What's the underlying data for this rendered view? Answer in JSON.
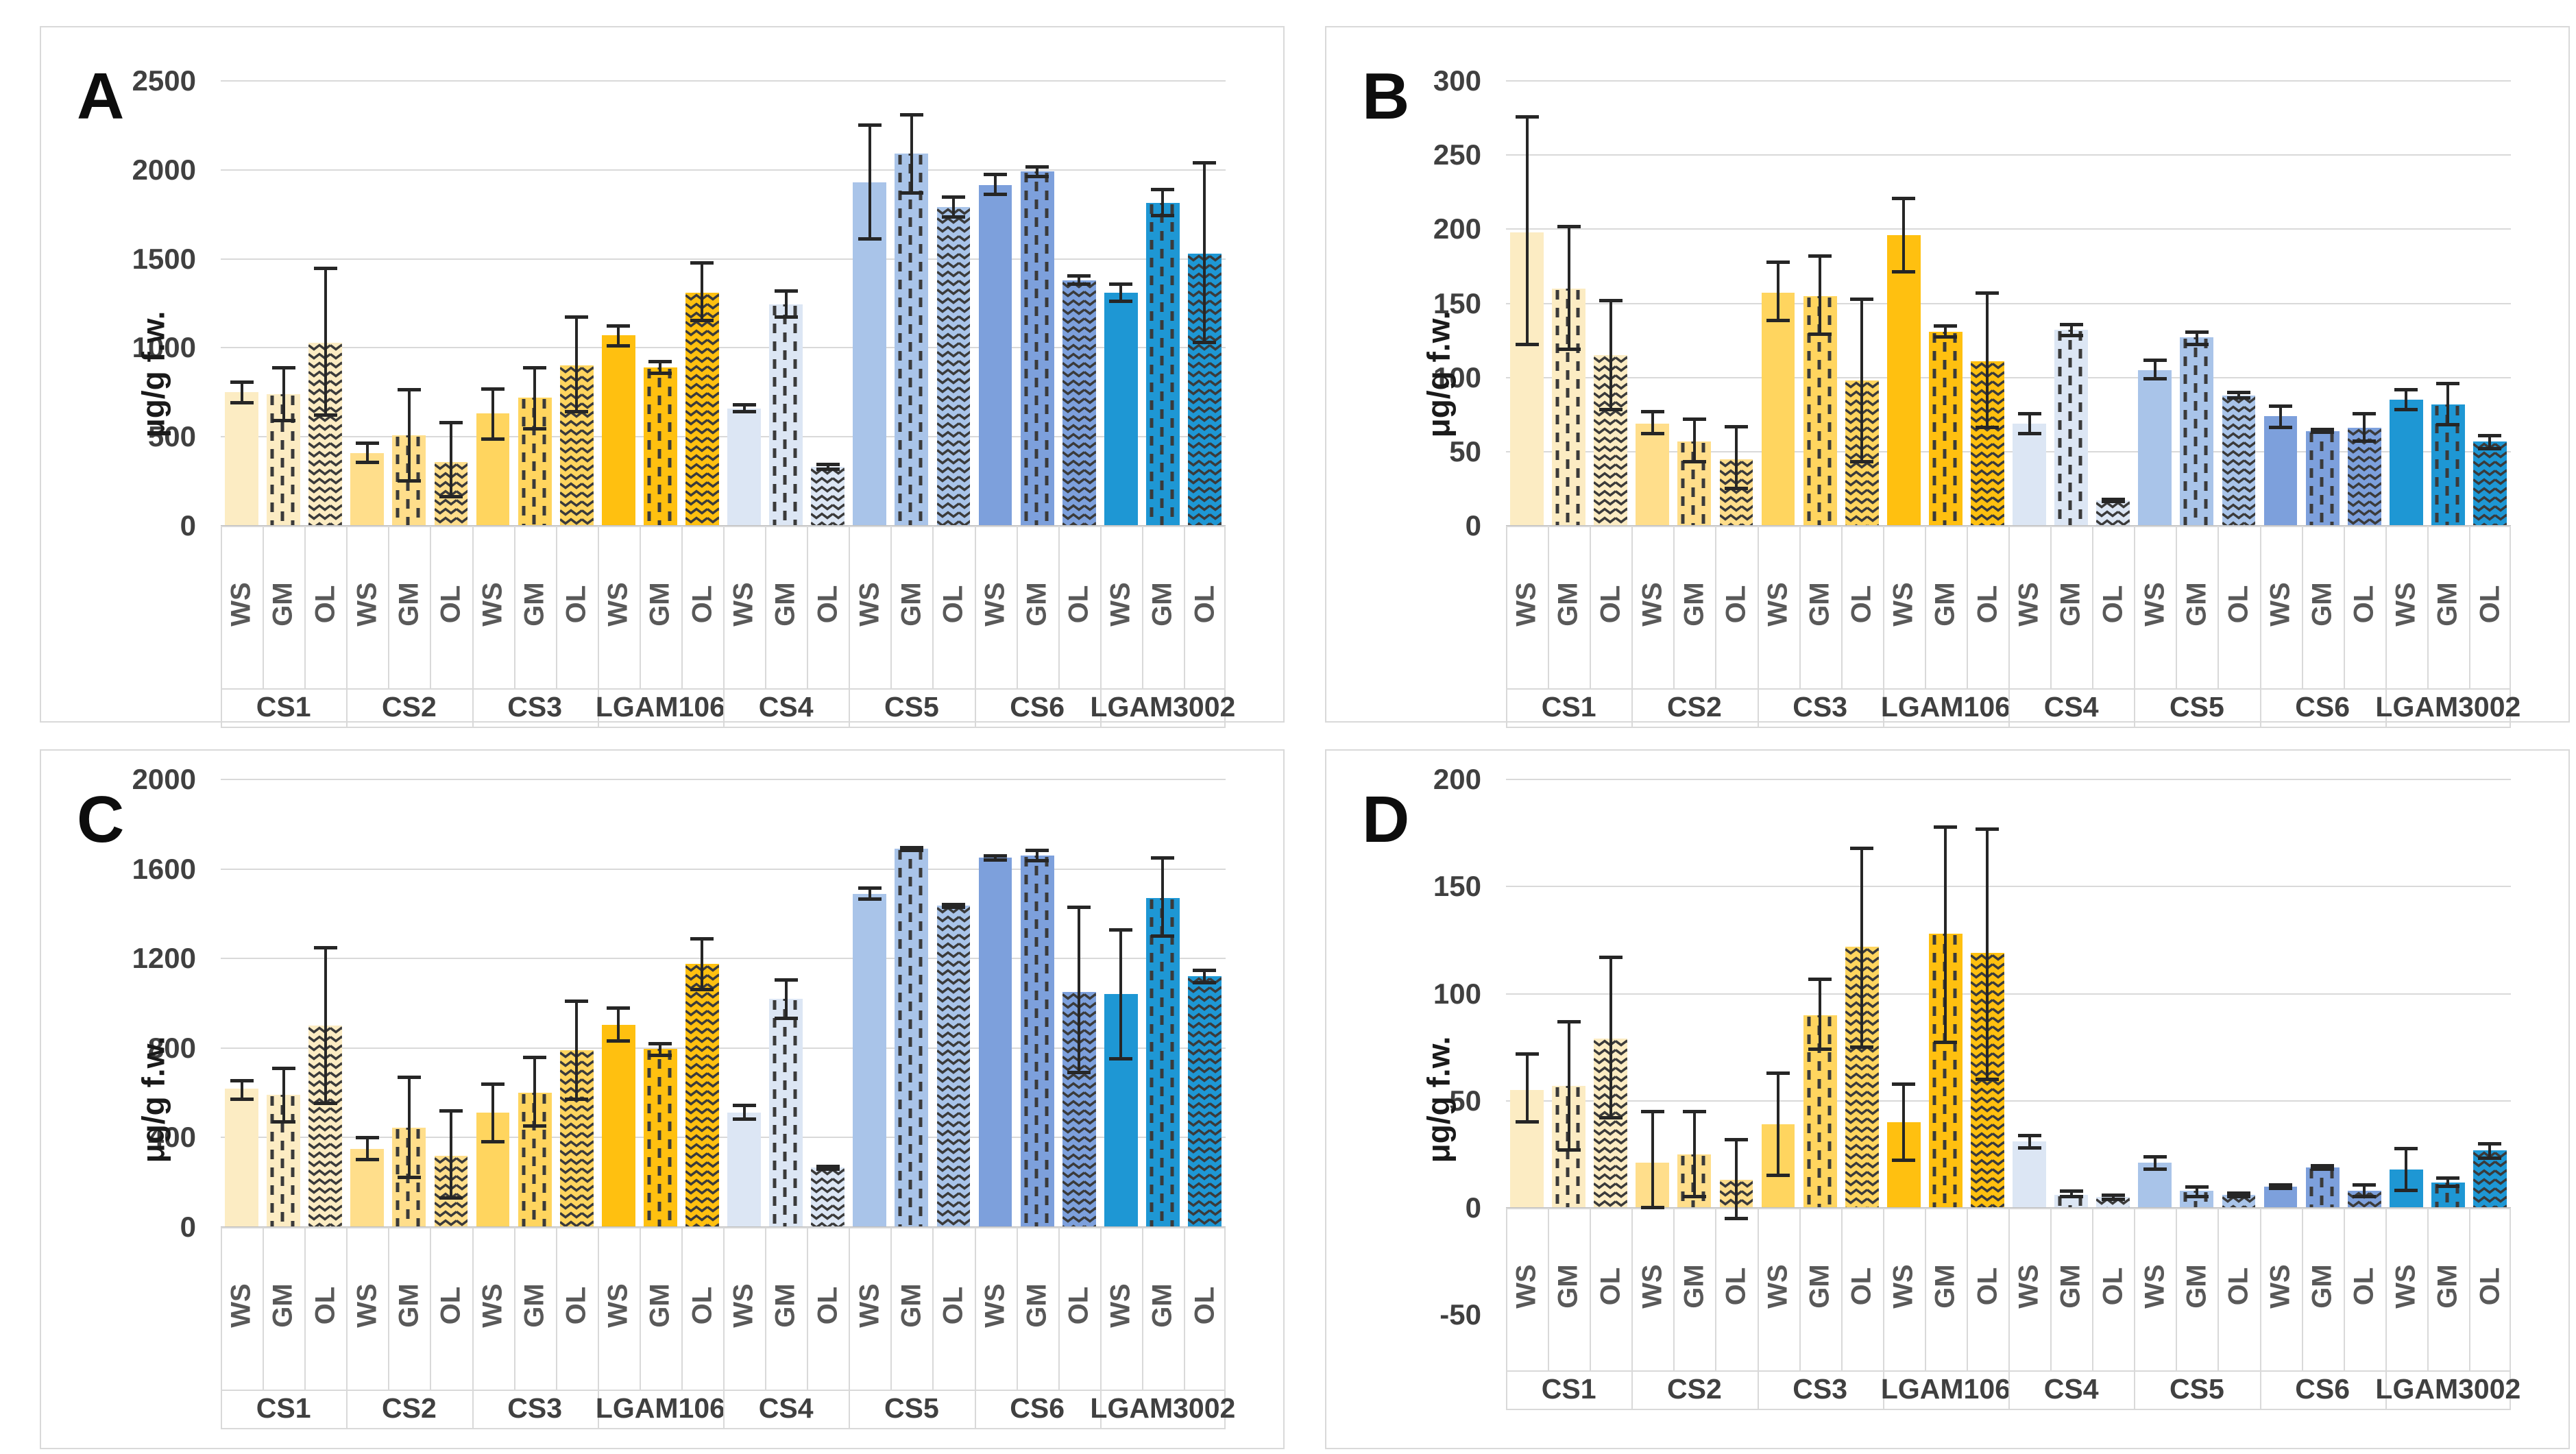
{
  "figure": {
    "panel_letters": [
      "A",
      "B",
      "C",
      "D"
    ],
    "y_axis_title": "μg/g f.w."
  },
  "strains": [
    "CS1",
    "CS2",
    "CS3",
    "LGAM106",
    "CS4",
    "CS5",
    "CS6",
    "LGAM3002"
  ],
  "conditions": [
    "WS",
    "GM",
    "OL"
  ],
  "patterns": {
    "WS": "solid",
    "GM": "dashed-vertical",
    "OL": "zigzag"
  },
  "colors": {
    "strain_fills": {
      "CS1": "#FCECC3",
      "CS2": "#FFDE8B",
      "CS3": "#FFD55F",
      "LGAM106": "#FFC010",
      "CS4": "#DCE6F4",
      "CS5": "#A9C4E9",
      "CS6": "#7DA0DC",
      "LGAM3002": "#1E97D4"
    },
    "pattern_stroke": "#3a3a3a",
    "error_bar": "#262626",
    "gridline": "#d9d9d9",
    "tick_text": "#404040",
    "bar_label_text": "#595959",
    "panel_border": "#d9d9d9"
  },
  "chart_data": [
    {
      "type": "bar",
      "panel": "A",
      "ylabel": "μg/g f.w.",
      "ylim": [
        0,
        2500
      ],
      "yticks": [
        0,
        500,
        1000,
        1500,
        2000,
        2500
      ],
      "grid": true,
      "legend": "none",
      "categories": [
        "CS1",
        "CS2",
        "CS3",
        "LGAM106",
        "CS4",
        "CS5",
        "CS6",
        "LGAM3002"
      ],
      "bar_labels": [
        "WS",
        "GM",
        "OL"
      ],
      "series": [
        {
          "name": "CS1",
          "values": [
            750,
            740,
            1030
          ],
          "err_low": [
            690,
            590,
            620
          ],
          "err_high": [
            810,
            890,
            1450
          ]
        },
        {
          "name": "CS2",
          "values": [
            410,
            510,
            360
          ],
          "err_low": [
            355,
            250,
            160
          ],
          "err_high": [
            465,
            765,
            580
          ]
        },
        {
          "name": "CS3",
          "values": [
            630,
            720,
            900
          ],
          "err_low": [
            485,
            545,
            640
          ],
          "err_high": [
            770,
            890,
            1175
          ]
        },
        {
          "name": "LGAM106",
          "values": [
            1070,
            890,
            1310
          ],
          "err_low": [
            1010,
            855,
            1150
          ],
          "err_high": [
            1125,
            925,
            1480
          ]
        },
        {
          "name": "CS4",
          "values": [
            660,
            1245,
            330
          ],
          "err_low": [
            640,
            1170,
            315
          ],
          "err_high": [
            680,
            1320,
            345
          ]
        },
        {
          "name": "CS5",
          "values": [
            1930,
            2090,
            1790
          ],
          "err_low": [
            1610,
            1870,
            1735
          ],
          "err_high": [
            2255,
            2310,
            1850
          ]
        },
        {
          "name": "CS6",
          "values": [
            1915,
            1990,
            1380
          ],
          "err_low": [
            1860,
            1960,
            1355
          ],
          "err_high": [
            1975,
            2020,
            1405
          ]
        },
        {
          "name": "LGAM3002",
          "values": [
            1310,
            1815,
            1530
          ],
          "err_low": [
            1260,
            1740,
            1030
          ],
          "err_high": [
            1360,
            1890,
            2040
          ]
        }
      ]
    },
    {
      "type": "bar",
      "panel": "B",
      "ylabel": "μg/g f.w.",
      "ylim": [
        0,
        300
      ],
      "yticks": [
        0,
        50,
        100,
        150,
        200,
        250,
        300
      ],
      "grid": true,
      "legend": "none",
      "categories": [
        "CS1",
        "CS2",
        "CS3",
        "LGAM106",
        "CS4",
        "CS5",
        "CS6",
        "LGAM3002"
      ],
      "bar_labels": [
        "WS",
        "GM",
        "OL"
      ],
      "series": [
        {
          "name": "CS1",
          "values": [
            198,
            160,
            115
          ],
          "err_low": [
            122,
            119,
            78
          ],
          "err_high": [
            276,
            202,
            152
          ]
        },
        {
          "name": "CS2",
          "values": [
            69,
            57,
            45
          ],
          "err_low": [
            62,
            43,
            25
          ],
          "err_high": [
            77,
            72,
            67
          ]
        },
        {
          "name": "CS3",
          "values": [
            157,
            155,
            98
          ],
          "err_low": [
            138,
            129,
            43
          ],
          "err_high": [
            178,
            182,
            153
          ]
        },
        {
          "name": "LGAM106",
          "values": [
            196,
            131,
            111
          ],
          "err_low": [
            171,
            127,
            66
          ],
          "err_high": [
            221,
            135,
            157
          ]
        },
        {
          "name": "CS4",
          "values": [
            69,
            132,
            17
          ],
          "err_low": [
            62,
            128,
            16
          ],
          "err_high": [
            76,
            136,
            18
          ]
        },
        {
          "name": "CS5",
          "values": [
            105,
            127,
            88
          ],
          "err_low": [
            99,
            122,
            86
          ],
          "err_high": [
            112,
            131,
            90
          ]
        },
        {
          "name": "CS6",
          "values": [
            74,
            64,
            66
          ],
          "err_low": [
            66,
            63,
            57
          ],
          "err_high": [
            81,
            65,
            76
          ]
        },
        {
          "name": "LGAM3002",
          "values": [
            85,
            82,
            57
          ],
          "err_low": [
            78,
            68,
            52
          ],
          "err_high": [
            92,
            96,
            61
          ]
        }
      ]
    },
    {
      "type": "bar",
      "panel": "C",
      "ylabel": "μg/g f.w.",
      "ylim": [
        0,
        2000
      ],
      "yticks": [
        0,
        400,
        800,
        1200,
        1600,
        2000
      ],
      "grid": true,
      "legend": "none",
      "categories": [
        "CS1",
        "CS2",
        "CS3",
        "LGAM106",
        "CS4",
        "CS5",
        "CS6",
        "LGAM3002"
      ],
      "bar_labels": [
        "WS",
        "GM",
        "OL"
      ],
      "series": [
        {
          "name": "CS1",
          "values": [
            620,
            590,
            900
          ],
          "err_low": [
            570,
            470,
            550
          ],
          "err_high": [
            655,
            710,
            1250
          ]
        },
        {
          "name": "CS2",
          "values": [
            350,
            445,
            320
          ],
          "err_low": [
            300,
            220,
            130
          ],
          "err_high": [
            400,
            670,
            520
          ]
        },
        {
          "name": "CS3",
          "values": [
            510,
            600,
            790
          ],
          "err_low": [
            380,
            450,
            570
          ],
          "err_high": [
            640,
            760,
            1010
          ]
        },
        {
          "name": "LGAM106",
          "values": [
            905,
            795,
            1175
          ],
          "err_low": [
            830,
            765,
            1060
          ],
          "err_high": [
            980,
            820,
            1290
          ]
        },
        {
          "name": "CS4",
          "values": [
            510,
            1020,
            265
          ],
          "err_low": [
            480,
            930,
            258
          ],
          "err_high": [
            545,
            1105,
            272
          ]
        },
        {
          "name": "CS5",
          "values": [
            1490,
            1690,
            1435
          ],
          "err_low": [
            1465,
            1680,
            1428
          ],
          "err_high": [
            1515,
            1698,
            1442
          ]
        },
        {
          "name": "CS6",
          "values": [
            1650,
            1660,
            1050
          ],
          "err_low": [
            1640,
            1635,
            690
          ],
          "err_high": [
            1660,
            1685,
            1430
          ]
        },
        {
          "name": "LGAM3002",
          "values": [
            1040,
            1470,
            1120
          ],
          "err_low": [
            750,
            1300,
            1090
          ],
          "err_high": [
            1330,
            1650,
            1150
          ]
        }
      ]
    },
    {
      "type": "bar",
      "panel": "D",
      "ylabel": "μg/g f.w.",
      "ylim": [
        -50,
        200
      ],
      "yticks": [
        -50,
        0,
        50,
        100,
        150,
        200
      ],
      "grid": true,
      "legend": "none",
      "categories": [
        "CS1",
        "CS2",
        "CS3",
        "LGAM106",
        "CS4",
        "CS5",
        "CS6",
        "LGAM3002"
      ],
      "bar_labels": [
        "WS",
        "GM",
        "OL"
      ],
      "series": [
        {
          "name": "CS1",
          "values": [
            55,
            57,
            79
          ],
          "err_low": [
            40,
            27,
            42
          ],
          "err_high": [
            72,
            87,
            117
          ]
        },
        {
          "name": "CS2",
          "values": [
            21,
            25,
            13
          ],
          "err_low": [
            0,
            5,
            -5
          ],
          "err_high": [
            45,
            45,
            32
          ]
        },
        {
          "name": "CS3",
          "values": [
            39,
            90,
            122
          ],
          "err_low": [
            15,
            74,
            75
          ],
          "err_high": [
            63,
            107,
            168
          ]
        },
        {
          "name": "LGAM106",
          "values": [
            40,
            128,
            119
          ],
          "err_low": [
            22,
            77,
            60
          ],
          "err_high": [
            58,
            178,
            177
          ]
        },
        {
          "name": "CS4",
          "values": [
            31,
            6,
            5
          ],
          "err_low": [
            28,
            5,
            4
          ],
          "err_high": [
            34,
            8,
            6
          ]
        },
        {
          "name": "CS5",
          "values": [
            21,
            8,
            6
          ],
          "err_low": [
            18,
            5,
            5
          ],
          "err_high": [
            24,
            10,
            7
          ]
        },
        {
          "name": "CS6",
          "values": [
            10,
            19,
            8
          ],
          "err_low": [
            9,
            18,
            5
          ],
          "err_high": [
            11,
            20,
            11
          ]
        },
        {
          "name": "LGAM3002",
          "values": [
            18,
            12,
            27
          ],
          "err_low": [
            8,
            10,
            23
          ],
          "err_high": [
            28,
            14,
            30
          ]
        }
      ]
    }
  ]
}
